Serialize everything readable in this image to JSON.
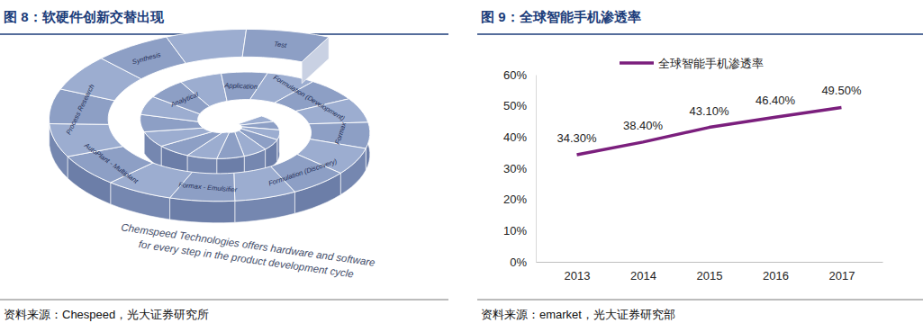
{
  "figure8": {
    "title": "图 8：软硬件创新交替出现",
    "source": "资料来源：Chespeed，光大证券研究所",
    "caption": [
      "Chemspeed Technologies offers hardware and software",
      "for every step in the product development cycle"
    ],
    "segments": [
      "Test",
      "Synthesis",
      "Process Research",
      "AutoPlant - Multiplant",
      "Formax - Emulsifier",
      "Formulation (Discovery)",
      "Formax",
      "Formulation (Development)",
      "Application",
      "Analytical"
    ]
  },
  "figure9": {
    "source": "资料来源：emarket，光大证券研究部"
  },
  "chart_data": {
    "type": "line",
    "title": "图 9：全球智能手机渗透率",
    "categories": [
      "2013",
      "2014",
      "2015",
      "2016",
      "2017"
    ],
    "series": [
      {
        "name": "全球智能手机渗透率",
        "color": "#7b1f7d",
        "values": [
          34.3,
          38.4,
          43.1,
          46.4,
          49.5
        ],
        "value_labels": [
          "34.30%",
          "38.40%",
          "43.10%",
          "46.40%",
          "49.50%"
        ]
      }
    ],
    "ylim": [
      0,
      60
    ],
    "yticks": [
      {
        "value": 0,
        "label": "0%"
      },
      {
        "value": 10,
        "label": "10%"
      },
      {
        "value": 20,
        "label": "20%"
      },
      {
        "value": 30,
        "label": "30%"
      },
      {
        "value": 40,
        "label": "40%"
      },
      {
        "value": 50,
        "label": "50%"
      },
      {
        "value": 60,
        "label": "60%"
      }
    ],
    "data_labels": true,
    "legend": "top"
  }
}
